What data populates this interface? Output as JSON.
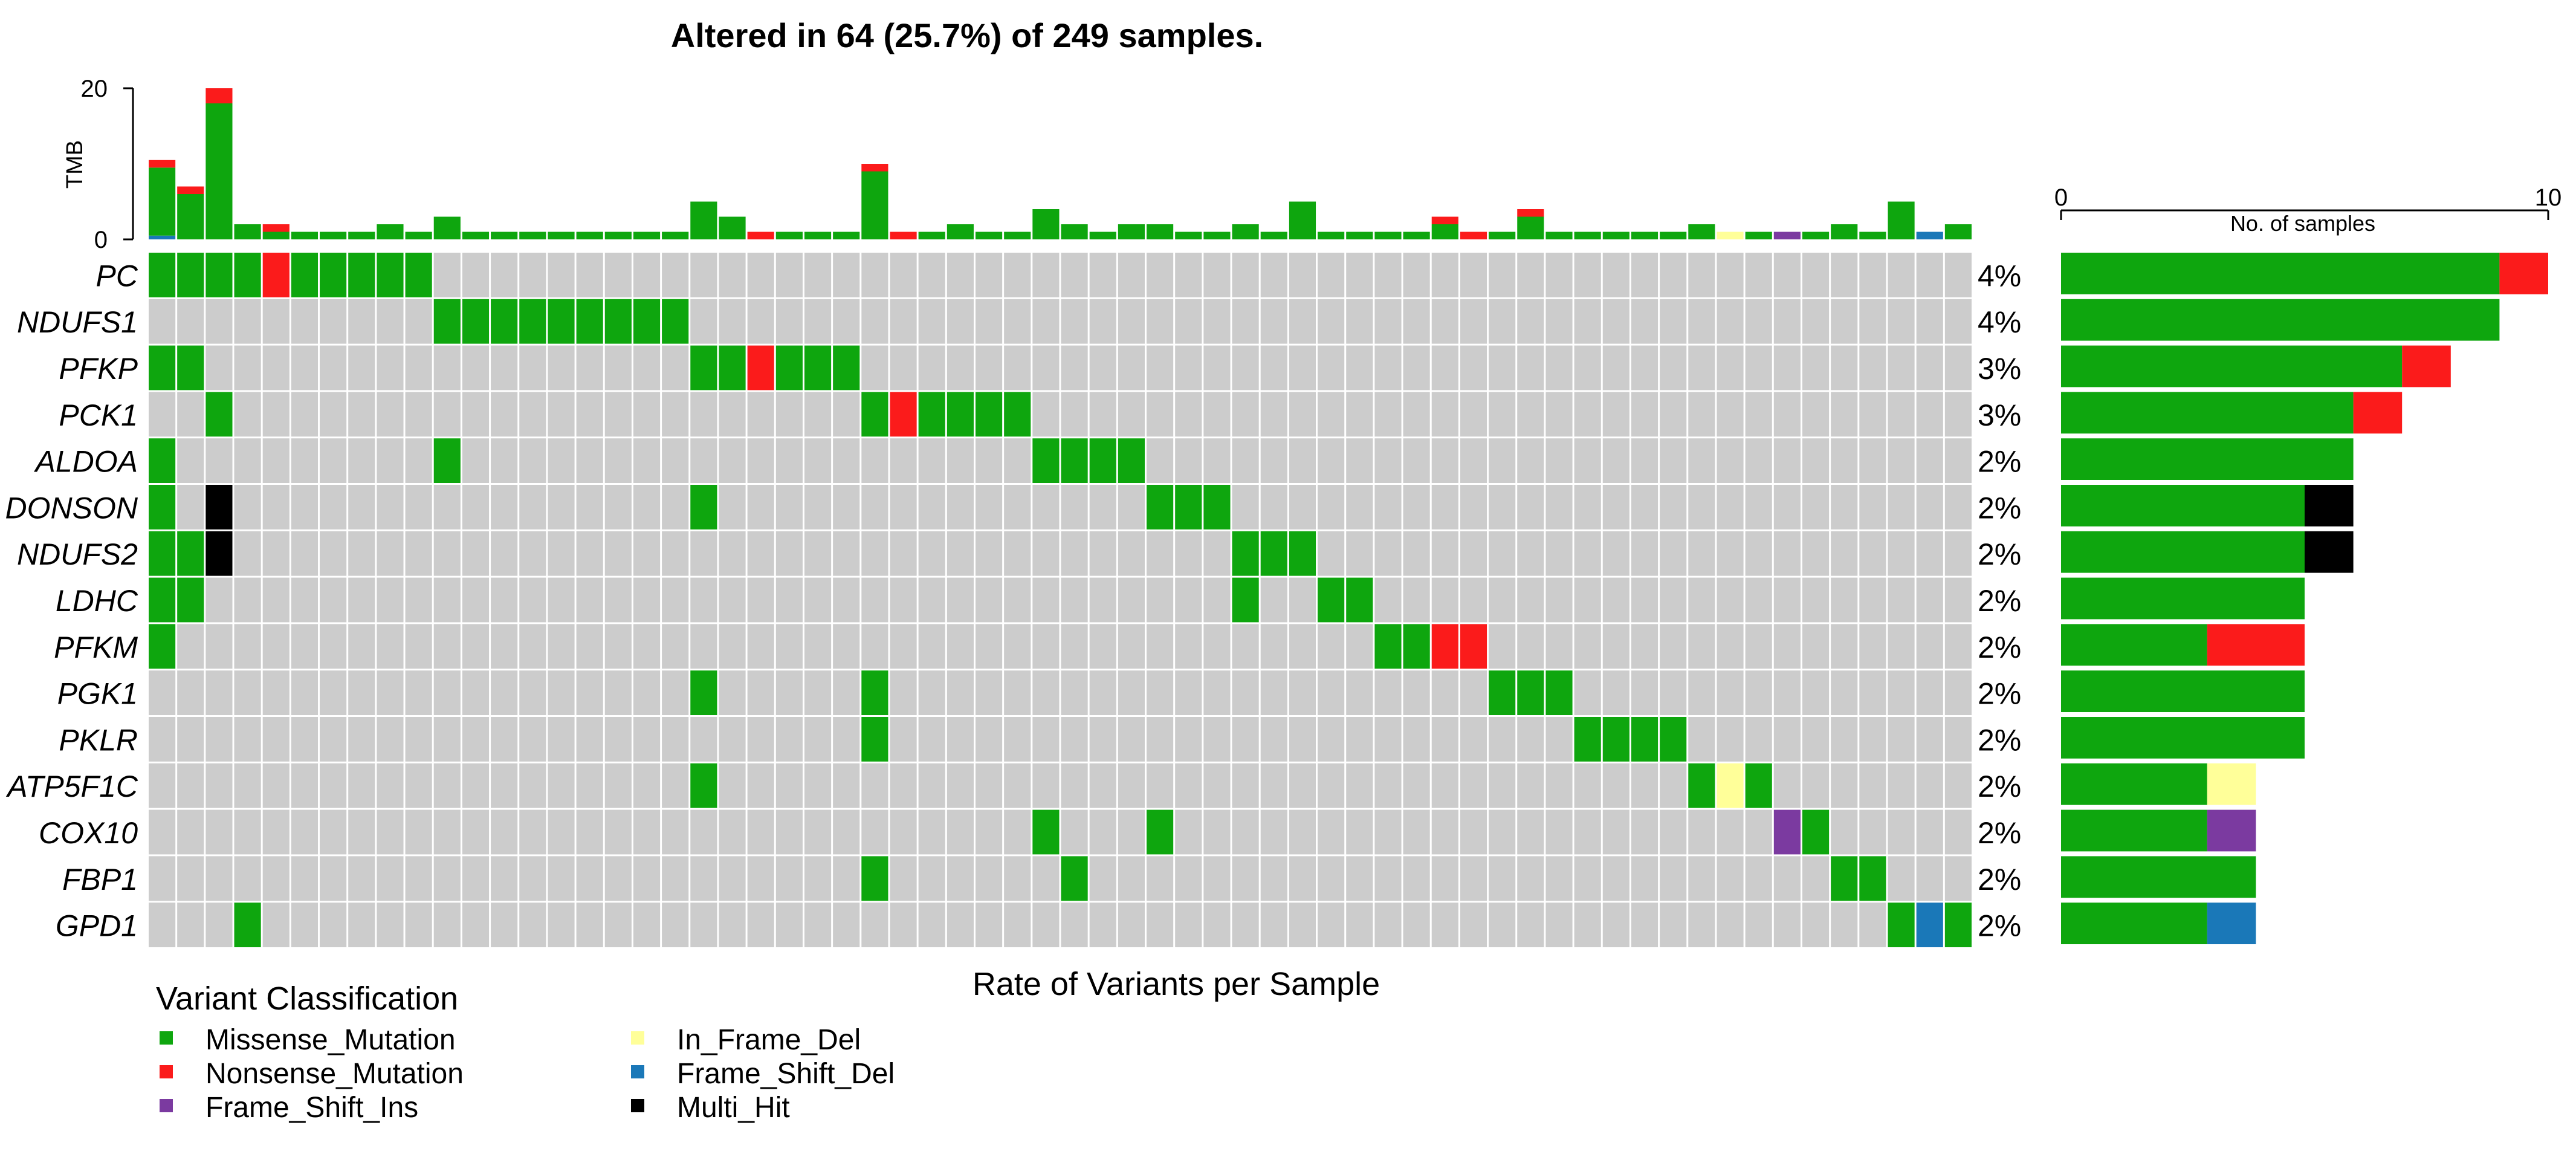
{
  "chart_data": {
    "type": "heatmap",
    "title": "Altered in 64 (25.7%) of 249 samples.",
    "xlabel": "Rate of Variants per Sample",
    "n_samples_shown": 64,
    "genes": [
      "PC",
      "NDUFS1",
      "PFKP",
      "PCK1",
      "ALDOA",
      "DONSON",
      "NDUFS2",
      "LDHC",
      "PFKM",
      "PGK1",
      "PKLR",
      "ATP5F1C",
      "COX10",
      "FBP1",
      "GPD1"
    ],
    "percentages": [
      "4%",
      "4%",
      "3%",
      "3%",
      "2%",
      "2%",
      "2%",
      "2%",
      "2%",
      "2%",
      "2%",
      "2%",
      "2%",
      "2%",
      "2%"
    ],
    "classification_colors": {
      "Missense_Mutation": "#0ea60e",
      "Nonsense_Mutation": "#fb1b1b",
      "Frame_Shift_Ins": "#7b3aa0",
      "In_Frame_Del": "#ffff99",
      "Frame_Shift_Del": "#1a78b8",
      "Multi_Hit": "#000000",
      "none": "#cccccc"
    },
    "oncoprint_cells": [
      {
        "gene": "PC",
        "sample": 0,
        "type": "Missense_Mutation"
      },
      {
        "gene": "PC",
        "sample": 1,
        "type": "Missense_Mutation"
      },
      {
        "gene": "PC",
        "sample": 2,
        "type": "Missense_Mutation"
      },
      {
        "gene": "PC",
        "sample": 3,
        "type": "Missense_Mutation"
      },
      {
        "gene": "PC",
        "sample": 4,
        "type": "Nonsense_Mutation"
      },
      {
        "gene": "PC",
        "sample": 5,
        "type": "Missense_Mutation"
      },
      {
        "gene": "PC",
        "sample": 6,
        "type": "Missense_Mutation"
      },
      {
        "gene": "PC",
        "sample": 7,
        "type": "Missense_Mutation"
      },
      {
        "gene": "PC",
        "sample": 8,
        "type": "Missense_Mutation"
      },
      {
        "gene": "PC",
        "sample": 9,
        "type": "Missense_Mutation"
      },
      {
        "gene": "NDUFS1",
        "sample": 10,
        "type": "Missense_Mutation"
      },
      {
        "gene": "NDUFS1",
        "sample": 11,
        "type": "Missense_Mutation"
      },
      {
        "gene": "NDUFS1",
        "sample": 12,
        "type": "Missense_Mutation"
      },
      {
        "gene": "NDUFS1",
        "sample": 13,
        "type": "Missense_Mutation"
      },
      {
        "gene": "NDUFS1",
        "sample": 14,
        "type": "Missense_Mutation"
      },
      {
        "gene": "NDUFS1",
        "sample": 15,
        "type": "Missense_Mutation"
      },
      {
        "gene": "NDUFS1",
        "sample": 16,
        "type": "Missense_Mutation"
      },
      {
        "gene": "NDUFS1",
        "sample": 17,
        "type": "Missense_Mutation"
      },
      {
        "gene": "NDUFS1",
        "sample": 18,
        "type": "Missense_Mutation"
      },
      {
        "gene": "PFKP",
        "sample": 0,
        "type": "Missense_Mutation"
      },
      {
        "gene": "PFKP",
        "sample": 1,
        "type": "Missense_Mutation"
      },
      {
        "gene": "PFKP",
        "sample": 19,
        "type": "Missense_Mutation"
      },
      {
        "gene": "PFKP",
        "sample": 20,
        "type": "Missense_Mutation"
      },
      {
        "gene": "PFKP",
        "sample": 21,
        "type": "Nonsense_Mutation"
      },
      {
        "gene": "PFKP",
        "sample": 22,
        "type": "Missense_Mutation"
      },
      {
        "gene": "PFKP",
        "sample": 23,
        "type": "Missense_Mutation"
      },
      {
        "gene": "PFKP",
        "sample": 24,
        "type": "Missense_Mutation"
      },
      {
        "gene": "PCK1",
        "sample": 2,
        "type": "Missense_Mutation"
      },
      {
        "gene": "PCK1",
        "sample": 25,
        "type": "Missense_Mutation"
      },
      {
        "gene": "PCK1",
        "sample": 26,
        "type": "Nonsense_Mutation"
      },
      {
        "gene": "PCK1",
        "sample": 27,
        "type": "Missense_Mutation"
      },
      {
        "gene": "PCK1",
        "sample": 28,
        "type": "Missense_Mutation"
      },
      {
        "gene": "PCK1",
        "sample": 29,
        "type": "Missense_Mutation"
      },
      {
        "gene": "PCK1",
        "sample": 30,
        "type": "Missense_Mutation"
      },
      {
        "gene": "ALDOA",
        "sample": 0,
        "type": "Missense_Mutation"
      },
      {
        "gene": "ALDOA",
        "sample": 10,
        "type": "Missense_Mutation"
      },
      {
        "gene": "ALDOA",
        "sample": 31,
        "type": "Missense_Mutation"
      },
      {
        "gene": "ALDOA",
        "sample": 32,
        "type": "Missense_Mutation"
      },
      {
        "gene": "ALDOA",
        "sample": 33,
        "type": "Missense_Mutation"
      },
      {
        "gene": "ALDOA",
        "sample": 34,
        "type": "Missense_Mutation"
      },
      {
        "gene": "DONSON",
        "sample": 0,
        "type": "Missense_Mutation"
      },
      {
        "gene": "DONSON",
        "sample": 2,
        "type": "Multi_Hit"
      },
      {
        "gene": "DONSON",
        "sample": 19,
        "type": "Missense_Mutation"
      },
      {
        "gene": "DONSON",
        "sample": 35,
        "type": "Missense_Mutation"
      },
      {
        "gene": "DONSON",
        "sample": 36,
        "type": "Missense_Mutation"
      },
      {
        "gene": "DONSON",
        "sample": 37,
        "type": "Missense_Mutation"
      },
      {
        "gene": "NDUFS2",
        "sample": 0,
        "type": "Missense_Mutation"
      },
      {
        "gene": "NDUFS2",
        "sample": 1,
        "type": "Missense_Mutation"
      },
      {
        "gene": "NDUFS2",
        "sample": 2,
        "type": "Multi_Hit"
      },
      {
        "gene": "NDUFS2",
        "sample": 38,
        "type": "Missense_Mutation"
      },
      {
        "gene": "NDUFS2",
        "sample": 39,
        "type": "Missense_Mutation"
      },
      {
        "gene": "NDUFS2",
        "sample": 40,
        "type": "Missense_Mutation"
      },
      {
        "gene": "LDHC",
        "sample": 0,
        "type": "Missense_Mutation"
      },
      {
        "gene": "LDHC",
        "sample": 1,
        "type": "Missense_Mutation"
      },
      {
        "gene": "LDHC",
        "sample": 38,
        "type": "Missense_Mutation"
      },
      {
        "gene": "LDHC",
        "sample": 41,
        "type": "Missense_Mutation"
      },
      {
        "gene": "LDHC",
        "sample": 42,
        "type": "Missense_Mutation"
      },
      {
        "gene": "PFKM",
        "sample": 0,
        "type": "Missense_Mutation"
      },
      {
        "gene": "PFKM",
        "sample": 43,
        "type": "Missense_Mutation"
      },
      {
        "gene": "PFKM",
        "sample": 44,
        "type": "Missense_Mutation"
      },
      {
        "gene": "PFKM",
        "sample": 45,
        "type": "Nonsense_Mutation"
      },
      {
        "gene": "PFKM",
        "sample": 46,
        "type": "Nonsense_Mutation"
      },
      {
        "gene": "PGK1",
        "sample": 19,
        "type": "Missense_Mutation"
      },
      {
        "gene": "PGK1",
        "sample": 25,
        "type": "Missense_Mutation"
      },
      {
        "gene": "PGK1",
        "sample": 47,
        "type": "Missense_Mutation"
      },
      {
        "gene": "PGK1",
        "sample": 48,
        "type": "Missense_Mutation"
      },
      {
        "gene": "PGK1",
        "sample": 49,
        "type": "Missense_Mutation"
      },
      {
        "gene": "PKLR",
        "sample": 25,
        "type": "Missense_Mutation"
      },
      {
        "gene": "PKLR",
        "sample": 50,
        "type": "Missense_Mutation"
      },
      {
        "gene": "PKLR",
        "sample": 51,
        "type": "Missense_Mutation"
      },
      {
        "gene": "PKLR",
        "sample": 52,
        "type": "Missense_Mutation"
      },
      {
        "gene": "PKLR",
        "sample": 53,
        "type": "Missense_Mutation"
      },
      {
        "gene": "ATP5F1C",
        "sample": 19,
        "type": "Missense_Mutation"
      },
      {
        "gene": "ATP5F1C",
        "sample": 54,
        "type": "Missense_Mutation"
      },
      {
        "gene": "ATP5F1C",
        "sample": 55,
        "type": "In_Frame_Del"
      },
      {
        "gene": "ATP5F1C",
        "sample": 56,
        "type": "Missense_Mutation"
      },
      {
        "gene": "COX10",
        "sample": 31,
        "type": "Missense_Mutation"
      },
      {
        "gene": "COX10",
        "sample": 35,
        "type": "Missense_Mutation"
      },
      {
        "gene": "COX10",
        "sample": 57,
        "type": "Frame_Shift_Ins"
      },
      {
        "gene": "COX10",
        "sample": 58,
        "type": "Missense_Mutation"
      },
      {
        "gene": "FBP1",
        "sample": 25,
        "type": "Missense_Mutation"
      },
      {
        "gene": "FBP1",
        "sample": 32,
        "type": "Missense_Mutation"
      },
      {
        "gene": "FBP1",
        "sample": 59,
        "type": "Missense_Mutation"
      },
      {
        "gene": "FBP1",
        "sample": 60,
        "type": "Missense_Mutation"
      },
      {
        "gene": "GPD1",
        "sample": 3,
        "type": "Missense_Mutation"
      },
      {
        "gene": "GPD1",
        "sample": 61,
        "type": "Missense_Mutation"
      },
      {
        "gene": "GPD1",
        "sample": 62,
        "type": "Frame_Shift_Del"
      },
      {
        "gene": "GPD1",
        "sample": 63,
        "type": "Missense_Mutation"
      }
    ],
    "tmb": {
      "label": "TMB",
      "ylim": [
        0,
        20
      ],
      "ticks": [
        "0",
        "20"
      ],
      "samples": [
        {
          "Missense_Mutation": 9,
          "Nonsense_Mutation": 1,
          "Frame_Shift_Del": 0.5
        },
        {
          "Missense_Mutation": 6,
          "Nonsense_Mutation": 1
        },
        {
          "Missense_Mutation": 18,
          "Nonsense_Mutation": 2
        },
        {
          "Missense_Mutation": 2
        },
        {
          "Missense_Mutation": 1,
          "Nonsense_Mutation": 1
        },
        {
          "Missense_Mutation": 1
        },
        {
          "Missense_Mutation": 1
        },
        {
          "Missense_Mutation": 1
        },
        {
          "Missense_Mutation": 2
        },
        {
          "Missense_Mutation": 1
        },
        {
          "Missense_Mutation": 3
        },
        {
          "Missense_Mutation": 1
        },
        {
          "Missense_Mutation": 1
        },
        {
          "Missense_Mutation": 1
        },
        {
          "Missense_Mutation": 1
        },
        {
          "Missense_Mutation": 1
        },
        {
          "Missense_Mutation": 1
        },
        {
          "Missense_Mutation": 1
        },
        {
          "Missense_Mutation": 1
        },
        {
          "Missense_Mutation": 5
        },
        {
          "Missense_Mutation": 3
        },
        {
          "Nonsense_Mutation": 1
        },
        {
          "Missense_Mutation": 1
        },
        {
          "Missense_Mutation": 1
        },
        {
          "Missense_Mutation": 1
        },
        {
          "Missense_Mutation": 9,
          "Nonsense_Mutation": 1
        },
        {
          "Nonsense_Mutation": 1
        },
        {
          "Missense_Mutation": 1
        },
        {
          "Missense_Mutation": 2
        },
        {
          "Missense_Mutation": 1
        },
        {
          "Missense_Mutation": 1
        },
        {
          "Missense_Mutation": 4
        },
        {
          "Missense_Mutation": 2
        },
        {
          "Missense_Mutation": 1
        },
        {
          "Missense_Mutation": 2
        },
        {
          "Missense_Mutation": 2
        },
        {
          "Missense_Mutation": 1
        },
        {
          "Missense_Mutation": 1
        },
        {
          "Missense_Mutation": 2
        },
        {
          "Missense_Mutation": 1
        },
        {
          "Missense_Mutation": 5
        },
        {
          "Missense_Mutation": 1
        },
        {
          "Missense_Mutation": 1
        },
        {
          "Missense_Mutation": 1
        },
        {
          "Missense_Mutation": 1
        },
        {
          "Missense_Mutation": 2,
          "Nonsense_Mutation": 1
        },
        {
          "Nonsense_Mutation": 1
        },
        {
          "Missense_Mutation": 1
        },
        {
          "Missense_Mutation": 3,
          "Nonsense_Mutation": 1
        },
        {
          "Missense_Mutation": 1
        },
        {
          "Missense_Mutation": 1
        },
        {
          "Missense_Mutation": 1
        },
        {
          "Missense_Mutation": 1
        },
        {
          "Missense_Mutation": 1
        },
        {
          "Missense_Mutation": 2
        },
        {
          "In_Frame_Del": 1
        },
        {
          "Missense_Mutation": 1
        },
        {
          "Frame_Shift_Ins": 1
        },
        {
          "Missense_Mutation": 1
        },
        {
          "Missense_Mutation": 2
        },
        {
          "Missense_Mutation": 1
        },
        {
          "Missense_Mutation": 5
        },
        {
          "Frame_Shift_Del": 1
        },
        {
          "Missense_Mutation": 2
        }
      ]
    },
    "gene_bars": {
      "xlabel": "No. of samples",
      "xlim": [
        0,
        10
      ],
      "ticks": [
        "0",
        "10"
      ],
      "values": [
        {
          "Missense_Mutation": 9,
          "Nonsense_Mutation": 1
        },
        {
          "Missense_Mutation": 9
        },
        {
          "Missense_Mutation": 7,
          "Nonsense_Mutation": 1
        },
        {
          "Missense_Mutation": 6,
          "Nonsense_Mutation": 1
        },
        {
          "Missense_Mutation": 6
        },
        {
          "Missense_Mutation": 5,
          "Multi_Hit": 1
        },
        {
          "Missense_Mutation": 5,
          "Multi_Hit": 1
        },
        {
          "Missense_Mutation": 5
        },
        {
          "Missense_Mutation": 3,
          "Nonsense_Mutation": 2
        },
        {
          "Missense_Mutation": 5
        },
        {
          "Missense_Mutation": 5
        },
        {
          "Missense_Mutation": 3,
          "In_Frame_Del": 1
        },
        {
          "Missense_Mutation": 3,
          "Frame_Shift_Ins": 1
        },
        {
          "Missense_Mutation": 4
        },
        {
          "Missense_Mutation": 3,
          "Frame_Shift_Del": 1
        }
      ]
    },
    "legend": {
      "title": "Variant Classification",
      "items": [
        {
          "label": "Missense_Mutation",
          "key": "Missense_Mutation"
        },
        {
          "label": "Nonsense_Mutation",
          "key": "Nonsense_Mutation"
        },
        {
          "label": "Frame_Shift_Ins",
          "key": "Frame_Shift_Ins"
        },
        {
          "label": "In_Frame_Del",
          "key": "In_Frame_Del"
        },
        {
          "label": "Frame_Shift_Del",
          "key": "Frame_Shift_Del"
        },
        {
          "label": "Multi_Hit",
          "key": "Multi_Hit"
        }
      ]
    }
  }
}
